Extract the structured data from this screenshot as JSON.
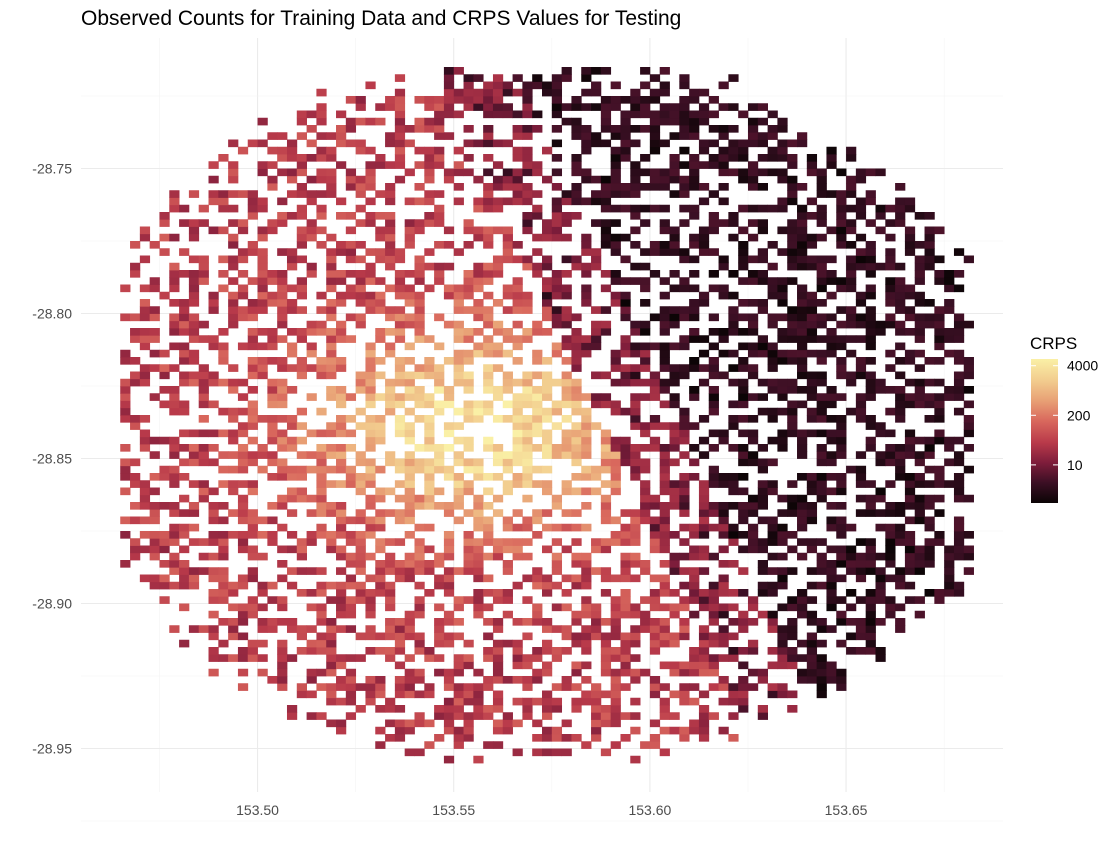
{
  "chart_data": {
    "type": "heatmap",
    "title": "Observed Counts for Training Data and CRPS Values for Testing",
    "xlabel": "",
    "ylabel": "",
    "xlim": [
      153.455,
      153.69
    ],
    "ylim": [
      -28.965,
      -28.705
    ],
    "x_ticks": [
      {
        "value": 153.5,
        "label": "153.50"
      },
      {
        "value": 153.55,
        "label": "153.55"
      },
      {
        "value": 153.6,
        "label": "153.60"
      },
      {
        "value": 153.65,
        "label": "153.65"
      }
    ],
    "y_ticks": [
      {
        "value": -28.75,
        "label": "-28.75"
      },
      {
        "value": -28.8,
        "label": "-28.80"
      },
      {
        "value": -28.85,
        "label": "-28.85"
      },
      {
        "value": -28.9,
        "label": "-28.90"
      },
      {
        "value": -28.95,
        "label": "-28.95"
      }
    ],
    "grid": true,
    "cell_size_deg": 0.0025,
    "region": {
      "lon_min": 153.465,
      "lon_max": 153.68,
      "lat_min": -28.955,
      "lat_max": -28.715,
      "east_boundary_lon": 153.585
    },
    "colorscale": {
      "name": "CRPS",
      "scale": "log",
      "min_value": 1,
      "max_value": 6000,
      "stops": [
        "#0b0405",
        "#3b0f24",
        "#7e1d3b",
        "#b93a4a",
        "#d9685d",
        "#e8a075",
        "#f2cc8e",
        "#faf0a6"
      ],
      "ticks": [
        {
          "value": 10,
          "label": "10"
        },
        {
          "value": 200,
          "label": "200"
        },
        {
          "value": 4000,
          "label": "4000"
        }
      ]
    },
    "legend": {
      "title": "CRPS",
      "position": "right"
    }
  }
}
